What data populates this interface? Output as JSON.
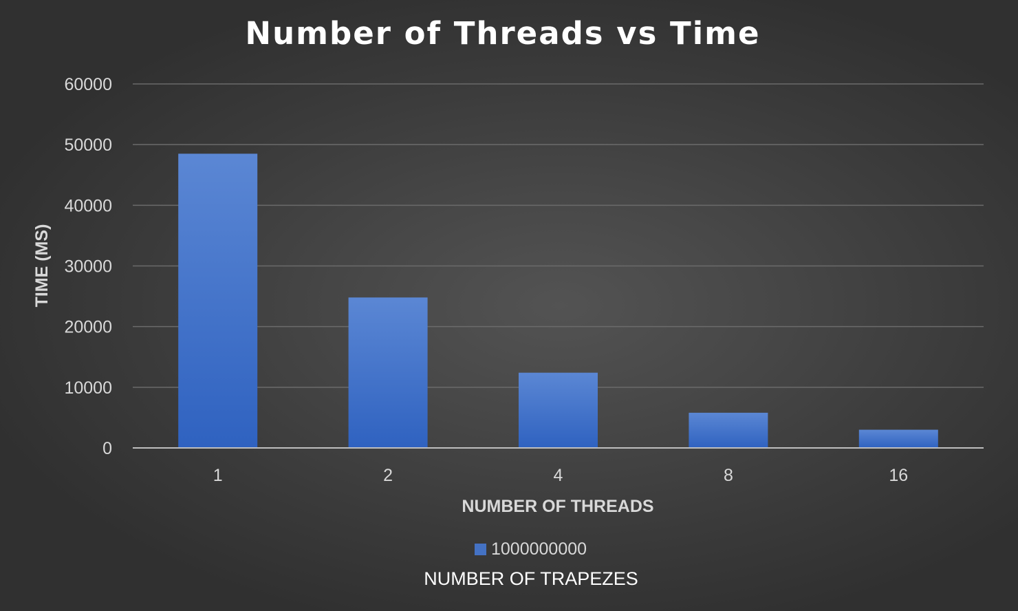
{
  "chart_data": {
    "type": "bar",
    "title": "Number of Threads vs Time",
    "xlabel": "NUMBER OF THREADS",
    "ylabel": "TIME (MS)",
    "categories": [
      "1",
      "2",
      "4",
      "8",
      "16"
    ],
    "series": [
      {
        "name": "1000000000",
        "values": [
          48500,
          24800,
          12400,
          5800,
          3000
        ]
      }
    ],
    "ylim": [
      0,
      60000
    ],
    "yticks": [
      "0",
      "10000",
      "20000",
      "30000",
      "40000",
      "50000",
      "60000"
    ],
    "legend_title": "NUMBER OF TRAPEZES",
    "legend_position": "bottom",
    "grid": true,
    "colors": {
      "bar": "#4472c4",
      "bar_top": "#5b87d4",
      "gridline": "#6b6b6b",
      "axis": "#bfbfbf",
      "text": "#d9d9d9"
    }
  }
}
